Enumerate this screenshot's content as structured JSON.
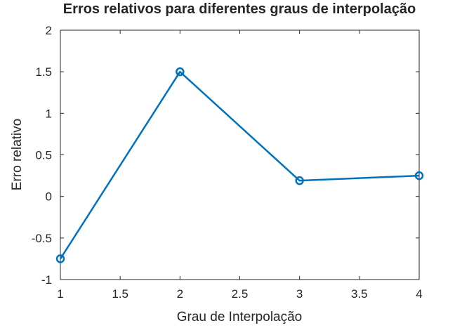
{
  "chart_data": {
    "type": "line",
    "title": "Erros relativos para diferentes graus de interpolação",
    "xlabel": "Grau de Interpolação",
    "ylabel": "Erro relativo",
    "xlim": [
      1,
      4
    ],
    "ylim": [
      -1,
      2
    ],
    "xticks": [
      "1",
      "1.5",
      "2",
      "2.5",
      "3",
      "3.5",
      "4"
    ],
    "yticks": [
      "-1",
      "-0.5",
      "0",
      "0.5",
      "1",
      "1.5",
      "2"
    ],
    "grid": false,
    "series": [
      {
        "x": [
          1,
          2,
          3,
          4
        ],
        "y": [
          -0.75,
          1.5,
          0.19,
          0.25
        ],
        "color": "#0072bd",
        "marker": "circle"
      }
    ]
  }
}
